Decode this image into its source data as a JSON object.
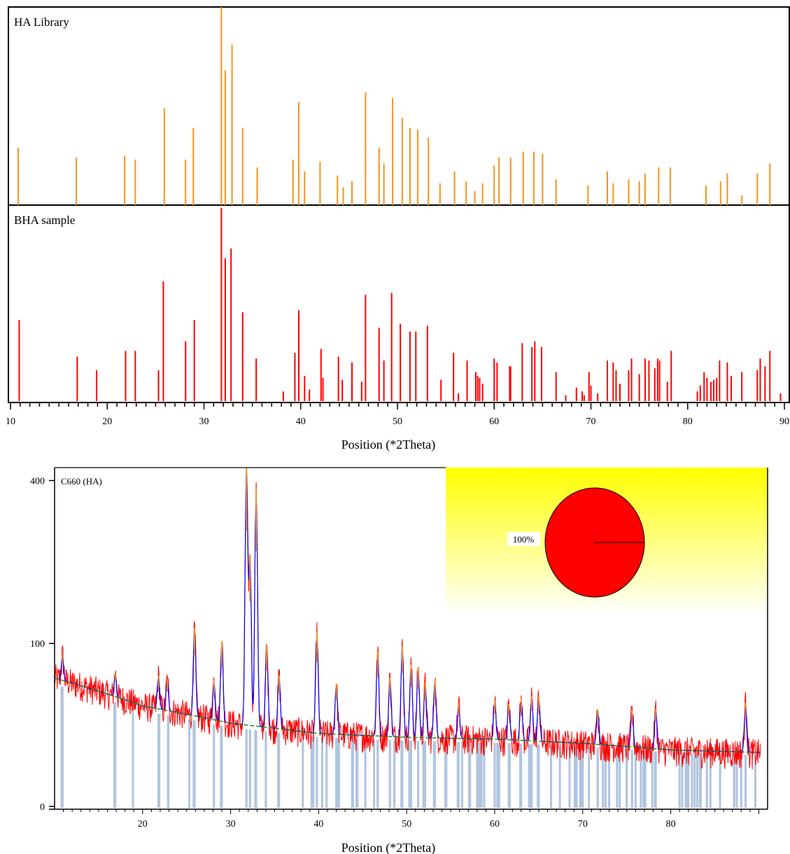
{
  "chart_data": [
    {
      "type": "bar",
      "title": "",
      "xlabel": "Position (*2Theta)",
      "ylabel": "",
      "xlim": [
        10,
        90
      ],
      "x_ticks": [
        10,
        20,
        30,
        40,
        50,
        60,
        70,
        80,
        90
      ],
      "grid": false,
      "panels": [
        {
          "name": "HA Library",
          "color": "#F7931E",
          "y_range": [
            0,
            1
          ],
          "peaks": [
            [
              10.8,
              0.29
            ],
            [
              16.8,
              0.24
            ],
            [
              21.8,
              0.25
            ],
            [
              22.9,
              0.23
            ],
            [
              25.9,
              0.49
            ],
            [
              28.1,
              0.23
            ],
            [
              28.9,
              0.39
            ],
            [
              31.8,
              1.0
            ],
            [
              32.2,
              0.68
            ],
            [
              32.9,
              0.81
            ],
            [
              34.0,
              0.39
            ],
            [
              35.5,
              0.19
            ],
            [
              39.2,
              0.23
            ],
            [
              39.8,
              0.52
            ],
            [
              40.4,
              0.17
            ],
            [
              42.0,
              0.22
            ],
            [
              43.8,
              0.15
            ],
            [
              44.4,
              0.09
            ],
            [
              45.3,
              0.12
            ],
            [
              46.7,
              0.57
            ],
            [
              48.1,
              0.29
            ],
            [
              48.6,
              0.21
            ],
            [
              49.5,
              0.54
            ],
            [
              50.5,
              0.44
            ],
            [
              51.3,
              0.39
            ],
            [
              52.1,
              0.38
            ],
            [
              53.2,
              0.34
            ],
            [
              54.4,
              0.11
            ],
            [
              55.9,
              0.17
            ],
            [
              57.1,
              0.12
            ],
            [
              58.0,
              0.07
            ],
            [
              58.8,
              0.11
            ],
            [
              60.0,
              0.2
            ],
            [
              60.5,
              0.24
            ],
            [
              61.7,
              0.24
            ],
            [
              63.0,
              0.27
            ],
            [
              64.1,
              0.27
            ],
            [
              65.0,
              0.26
            ],
            [
              66.4,
              0.13
            ],
            [
              69.7,
              0.1
            ],
            [
              71.7,
              0.17
            ],
            [
              72.3,
              0.11
            ],
            [
              73.9,
              0.13
            ],
            [
              75.0,
              0.12
            ],
            [
              75.6,
              0.16
            ],
            [
              77.0,
              0.19
            ],
            [
              78.2,
              0.19
            ],
            [
              81.9,
              0.1
            ],
            [
              83.4,
              0.12
            ],
            [
              84.1,
              0.16
            ],
            [
              85.6,
              0.05
            ],
            [
              87.2,
              0.16
            ],
            [
              88.5,
              0.21
            ]
          ]
        },
        {
          "name": "BHA sample",
          "color": "#FF0000",
          "y_range": [
            0,
            1
          ],
          "peaks": [
            [
              10.9,
              0.42
            ],
            [
              16.9,
              0.23
            ],
            [
              18.9,
              0.16
            ],
            [
              21.9,
              0.26
            ],
            [
              22.9,
              0.26
            ],
            [
              25.3,
              0.16
            ],
            [
              25.8,
              0.62
            ],
            [
              28.1,
              0.31
            ],
            [
              29.0,
              0.42
            ],
            [
              31.8,
              1.0
            ],
            [
              32.2,
              0.74
            ],
            [
              32.8,
              0.79
            ],
            [
              34.0,
              0.46
            ],
            [
              35.4,
              0.22
            ],
            [
              38.2,
              0.05
            ],
            [
              39.4,
              0.25
            ],
            [
              39.8,
              0.47
            ],
            [
              40.4,
              0.13
            ],
            [
              40.9,
              0.06
            ],
            [
              42.1,
              0.27
            ],
            [
              42.3,
              0.12
            ],
            [
              43.9,
              0.23
            ],
            [
              44.3,
              0.11
            ],
            [
              45.3,
              0.2
            ],
            [
              46.3,
              0.1
            ],
            [
              46.7,
              0.55
            ],
            [
              48.1,
              0.38
            ],
            [
              48.6,
              0.21
            ],
            [
              49.4,
              0.56
            ],
            [
              50.3,
              0.4
            ],
            [
              51.3,
              0.36
            ],
            [
              51.9,
              0.36
            ],
            [
              53.1,
              0.39
            ],
            [
              54.5,
              0.11
            ],
            [
              55.8,
              0.25
            ],
            [
              56.3,
              0.04
            ],
            [
              57.2,
              0.21
            ],
            [
              58.1,
              0.15
            ],
            [
              58.3,
              0.13
            ],
            [
              58.5,
              0.12
            ],
            [
              58.8,
              0.09
            ],
            [
              60.0,
              0.22
            ],
            [
              60.3,
              0.2
            ],
            [
              61.6,
              0.18
            ],
            [
              61.7,
              0.18
            ],
            [
              62.9,
              0.3
            ],
            [
              63.9,
              0.28
            ],
            [
              64.2,
              0.31
            ],
            [
              64.9,
              0.28
            ],
            [
              66.4,
              0.15
            ],
            [
              67.4,
              0.03
            ],
            [
              68.5,
              0.07
            ],
            [
              69.1,
              0.05
            ],
            [
              69.3,
              0.03
            ],
            [
              69.8,
              0.15
            ],
            [
              70.0,
              0.08
            ],
            [
              70.7,
              0.04
            ],
            [
              71.7,
              0.21
            ],
            [
              72.3,
              0.2
            ],
            [
              72.6,
              0.16
            ],
            [
              73.0,
              0.09
            ],
            [
              73.9,
              0.16
            ],
            [
              74.2,
              0.22
            ],
            [
              75.0,
              0.14
            ],
            [
              75.6,
              0.22
            ],
            [
              76.0,
              0.21
            ],
            [
              76.6,
              0.17
            ],
            [
              76.9,
              0.22
            ],
            [
              77.1,
              0.21
            ],
            [
              77.9,
              0.1
            ],
            [
              78.3,
              0.26
            ],
            [
              81.0,
              0.05
            ],
            [
              81.3,
              0.08
            ],
            [
              81.7,
              0.15
            ],
            [
              82.0,
              0.12
            ],
            [
              82.4,
              0.1
            ],
            [
              82.7,
              0.11
            ],
            [
              83.0,
              0.12
            ],
            [
              83.3,
              0.21
            ],
            [
              84.1,
              0.2
            ],
            [
              84.5,
              0.13
            ],
            [
              85.6,
              0.15
            ],
            [
              87.2,
              0.16
            ],
            [
              87.5,
              0.22
            ],
            [
              88.0,
              0.18
            ],
            [
              88.5,
              0.26
            ],
            [
              89.6,
              0.04
            ]
          ]
        }
      ]
    },
    {
      "type": "line",
      "title": "C660 (HA)",
      "xlabel": "Position (*2Theta)",
      "ylabel": "",
      "xlim": [
        10,
        91
      ],
      "ylim": [
        0,
        420
      ],
      "y_scale": "sqrt",
      "x_ticks": [
        20,
        30,
        40,
        50,
        60,
        70,
        80
      ],
      "y_ticks": [
        0,
        100,
        400
      ],
      "grid": false,
      "pattern_color": "#FF0000",
      "calc_color": "#0000FF",
      "background_color": "#228B22",
      "peak_color": "#F7931E",
      "reference_stick_color": "#B0C4DE",
      "peaks": [
        [
          10.9,
          25
        ],
        [
          16.9,
          20
        ],
        [
          21.8,
          27
        ],
        [
          22.8,
          25
        ],
        [
          25.9,
          85
        ],
        [
          28.1,
          30
        ],
        [
          29.0,
          72
        ],
        [
          31.8,
          400
        ],
        [
          32.2,
          205
        ],
        [
          32.9,
          340
        ],
        [
          34.1,
          70
        ],
        [
          35.5,
          40
        ],
        [
          39.8,
          90
        ],
        [
          42.0,
          35
        ],
        [
          46.7,
          68
        ],
        [
          48.1,
          42
        ],
        [
          49.5,
          75
        ],
        [
          50.5,
          55
        ],
        [
          51.3,
          52
        ],
        [
          52.1,
          38
        ],
        [
          53.2,
          40
        ],
        [
          55.9,
          20
        ],
        [
          60.0,
          24
        ],
        [
          61.6,
          22
        ],
        [
          63.0,
          26
        ],
        [
          64.2,
          28
        ],
        [
          65.0,
          28
        ],
        [
          71.7,
          20
        ],
        [
          75.6,
          20
        ],
        [
          78.3,
          22
        ],
        [
          88.5,
          28
        ]
      ],
      "background": {
        "x": [
          10,
          20,
          30,
          40,
          50,
          60,
          70,
          80,
          90
        ],
        "y": [
          62,
          38,
          26,
          20,
          18,
          17,
          15,
          12,
          11
        ]
      },
      "inset": {
        "type": "pie",
        "slices": [
          {
            "label": "100%",
            "value": 100,
            "color": "#FF0000"
          }
        ],
        "background": "yellow-to-white gradient"
      }
    }
  ]
}
